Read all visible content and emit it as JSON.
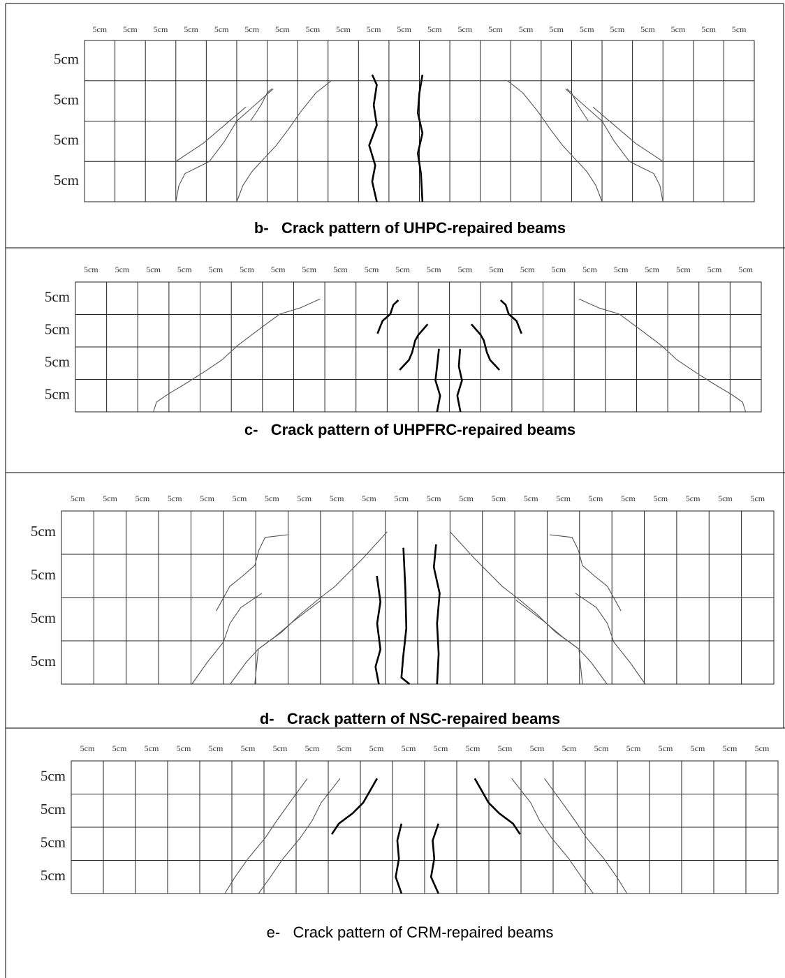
{
  "panels": [
    {
      "column_labels": [
        "5cm",
        "5cm",
        "5cm",
        "5cm",
        "5cm",
        "5cm",
        "5cm",
        "5cm",
        "5cm",
        "5cm",
        "5cm",
        "5cm",
        "5cm",
        "5cm",
        "5cm",
        "5cm",
        "5cm",
        "5cm",
        "5cm",
        "5cm",
        "5cm",
        "5cm"
      ],
      "row_labels": [
        "5cm",
        "5cm",
        "5cm",
        "5cm"
      ],
      "caption": "b-   Crack pattern of UHPC-repaired beams"
    },
    {
      "column_labels": [
        "5cm",
        "5cm",
        "5cm",
        "5cm",
        "5cm",
        "5cm",
        "5cm",
        "5cm",
        "5cm",
        "5cm",
        "5cm",
        "5cm",
        "5cm",
        "5cm",
        "5cm",
        "5cm",
        "5cm",
        "5cm",
        "5cm",
        "5cm",
        "5cm",
        "5cm"
      ],
      "row_labels": [
        "5cm",
        "5cm",
        "5cm",
        "5cm"
      ],
      "caption": "c-   Crack pattern of UHPFRC-repaired beams"
    },
    {
      "column_labels": [
        "5cm",
        "5cm",
        "5cm",
        "5cm",
        "5cm",
        "5cm",
        "5cm",
        "5cm",
        "5cm",
        "5cm",
        "5cm",
        "5cm",
        "5cm",
        "5cm",
        "5cm",
        "5cm",
        "5cm",
        "5cm",
        "5cm",
        "5cm",
        "5cm",
        "5cm"
      ],
      "row_labels": [
        "5cm",
        "5cm",
        "5cm",
        "5cm"
      ],
      "caption": "d-   Crack pattern of NSC-repaired beams"
    },
    {
      "column_labels": [
        "5cm",
        "5cm",
        "5cm",
        "5cm",
        "5cm",
        "5cm",
        "5cm",
        "5cm",
        "5cm",
        "5cm",
        "5cm",
        "5cm",
        "5cm",
        "5cm",
        "5cm",
        "5cm",
        "5cm",
        "5cm",
        "5cm",
        "5cm",
        "5cm",
        "5cm"
      ],
      "row_labels": [
        "5cm",
        "5cm",
        "5cm",
        "5cm"
      ],
      "caption": "e-   Crack pattern of CRM-repaired beams"
    }
  ]
}
